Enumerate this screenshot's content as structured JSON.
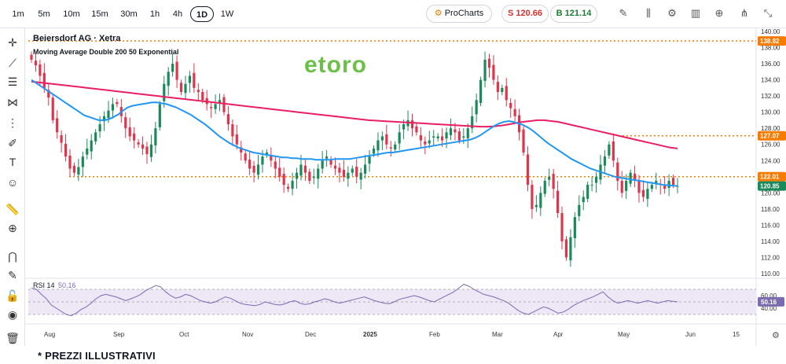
{
  "toolbar": {
    "timeframes": [
      "1m",
      "5m",
      "10m",
      "15m",
      "30m",
      "1h",
      "4h",
      "1D",
      "1W"
    ],
    "active_timeframe": "1D",
    "prochart_label": "ProCharts",
    "sell_label": "S 120.66",
    "buy_label": "B 121.14"
  },
  "logo_text": "etoro",
  "footer_note": "* PREZZI ILLUSTRATIVI",
  "colors": {
    "up": "#1b8a5a",
    "down": "#e0344c",
    "ma_fast": "#2196f3",
    "ma_slow": "#e91e63",
    "level_line": "#f57c00",
    "rsi_line": "#7b6bb0",
    "rsi_band": "#ede7f6",
    "logo": "#6cc04a"
  },
  "chart_data": {
    "type": "candlestick",
    "title": "Beiersdorf AG · Xetra",
    "indicator_label": "Moving Average Double 200 50 Exponential",
    "ylim": [
      110,
      140
    ],
    "y_ticks": [
      110,
      112,
      114,
      116,
      118,
      120,
      122,
      124,
      126,
      128,
      130,
      132,
      134,
      136,
      138,
      140
    ],
    "x_ticks": [
      "Aug",
      "Sep",
      "Oct",
      "Nov",
      "Dec",
      "2025",
      "Feb",
      "Mar",
      "Apr",
      "May",
      "Jun",
      "15"
    ],
    "price_levels": [
      {
        "value": 138.82,
        "label": "138.82",
        "color": "#f57c00"
      },
      {
        "value": 127.07,
        "label": "127.07",
        "color": "#f57c00"
      },
      {
        "value": 122.01,
        "label": "122.01",
        "color": "#f57c00"
      },
      {
        "value": 120.85,
        "label": "120.85",
        "color": "#1b8a5a"
      }
    ],
    "ohlc_closes": [
      136.5,
      135.8,
      134.5,
      133.0,
      131.8,
      129.0,
      127.5,
      126.2,
      124.5,
      123.0,
      122.5,
      123.2,
      124.5,
      125.5,
      126.5,
      127.5,
      128.5,
      129.5,
      130.2,
      131.0,
      131.0,
      129.5,
      128.0,
      127.0,
      126.5,
      126.0,
      125.5,
      124.8,
      126.0,
      128.0,
      131.0,
      133.5,
      135.0,
      136.0,
      134.0,
      132.5,
      133.5,
      134.5,
      133.0,
      132.5,
      131.5,
      131.0,
      130.5,
      131.0,
      131.5,
      130.0,
      128.5,
      127.0,
      126.0,
      125.0,
      124.0,
      123.0,
      122.5,
      123.5,
      124.5,
      125.0,
      124.0,
      123.0,
      122.0,
      121.0,
      120.5,
      121.5,
      122.5,
      123.5,
      122.5,
      121.5,
      122.0,
      123.0,
      124.0,
      124.5,
      123.5,
      123.0,
      122.5,
      122.0,
      122.5,
      123.0,
      122.0,
      122.5,
      123.5,
      124.5,
      125.5,
      126.5,
      127.0,
      126.0,
      125.5,
      126.0,
      127.5,
      128.5,
      129.0,
      128.0,
      127.5,
      126.5,
      126.0,
      126.5,
      127.0,
      127.0,
      126.5,
      127.5,
      128.0,
      127.5,
      126.5,
      127.0,
      128.0,
      129.5,
      131.5,
      134.0,
      136.5,
      135.5,
      134.0,
      132.5,
      133.0,
      131.5,
      130.5,
      129.5,
      127.5,
      125.0,
      121.0,
      118.0,
      118.5,
      120.0,
      121.5,
      122.0,
      120.5,
      117.5,
      114.0,
      112.0,
      114.5,
      117.0,
      118.5,
      119.5,
      121.0,
      121.0,
      122.0,
      123.5,
      124.5,
      126.0,
      124.0,
      121.5,
      120.0,
      121.5,
      122.5,
      121.5,
      120.0,
      119.5,
      120.5,
      121.0,
      121.5,
      121.0,
      120.5,
      121.5,
      121.0,
      120.85
    ],
    "ema50": [
      134.0,
      133.6,
      133.2,
      132.8,
      132.4,
      132.0,
      131.6,
      131.2,
      130.8,
      130.4,
      130.0,
      129.6,
      129.4,
      129.2,
      129.0,
      129.0,
      129.1,
      129.4,
      129.7,
      130.2,
      130.6,
      130.8,
      130.9,
      131.0,
      131.1,
      131.2,
      131.2,
      131.1,
      131.0,
      130.8,
      130.6,
      130.3,
      130.0,
      129.7,
      129.3,
      128.9,
      128.5,
      128.0,
      127.5,
      127.0,
      126.6,
      126.2,
      125.9,
      125.6,
      125.4,
      125.2,
      125.0,
      124.9,
      124.8,
      124.7,
      124.6,
      124.5,
      124.4,
      124.4,
      124.3,
      124.3,
      124.2,
      124.2,
      124.2,
      124.1,
      124.1,
      124.1,
      124.1,
      124.2,
      124.2,
      124.2,
      124.2,
      124.3,
      124.4,
      124.5,
      124.6,
      124.7,
      124.8,
      124.9,
      125.0,
      125.0,
      125.1,
      125.2,
      125.3,
      125.4,
      125.5,
      125.6,
      125.7,
      125.8,
      125.9,
      126.0,
      126.1,
      126.2,
      126.3,
      126.4,
      126.5,
      126.6,
      126.8,
      127.1,
      127.5,
      127.9,
      128.3,
      128.6,
      128.8,
      128.9,
      128.8,
      128.6,
      128.4,
      128.1,
      127.7,
      127.2,
      126.7,
      126.2,
      125.8,
      125.4,
      125.0,
      124.6,
      124.2,
      123.9,
      123.6,
      123.3,
      123.0,
      122.8,
      122.6,
      122.4,
      122.2,
      122.0,
      121.9,
      121.8,
      121.7,
      121.6,
      121.5,
      121.4,
      121.3,
      121.2,
      121.1,
      121.0,
      120.95,
      120.9,
      120.85
    ],
    "ema200": [
      133.8,
      133.7,
      133.6,
      133.5,
      133.4,
      133.3,
      133.2,
      133.1,
      133.0,
      132.9,
      132.8,
      132.7,
      132.6,
      132.5,
      132.4,
      132.3,
      132.2,
      132.1,
      132.0,
      131.9,
      131.8,
      131.7,
      131.6,
      131.5,
      131.4,
      131.3,
      131.2,
      131.1,
      131.0,
      130.9,
      130.8,
      130.7,
      130.6,
      130.5,
      130.4,
      130.3,
      130.2,
      130.1,
      130.0,
      129.9,
      129.8,
      129.7,
      129.6,
      129.5,
      129.4,
      129.3,
      129.2,
      129.1,
      129.0,
      128.95,
      128.9,
      128.85,
      128.8,
      128.75,
      128.7,
      128.65,
      128.6,
      128.55,
      128.5,
      128.45,
      128.4,
      128.35,
      128.3,
      128.25,
      128.2,
      128.2,
      128.25,
      128.35,
      128.5,
      128.65,
      128.8,
      128.9,
      129.0,
      129.0,
      128.9,
      128.8,
      128.6,
      128.4,
      128.2,
      128.0,
      127.8,
      127.6,
      127.4,
      127.2,
      127.0,
      126.8,
      126.6,
      126.4,
      126.2,
      126.0,
      125.8,
      125.6,
      125.5
    ],
    "rsi": {
      "label": "RSI 14",
      "value": "50.16",
      "ylim": [
        20,
        80
      ],
      "ticks": [
        60,
        40
      ],
      "value_tag": "50.16",
      "series": [
        72,
        70,
        62,
        55,
        45,
        40,
        35,
        30,
        28,
        32,
        38,
        42,
        48,
        55,
        60,
        62,
        60,
        58,
        55,
        52,
        55,
        58,
        62,
        68,
        72,
        76,
        74,
        66,
        60,
        56,
        58,
        62,
        60,
        56,
        52,
        50,
        48,
        50,
        54,
        58,
        56,
        52,
        48,
        46,
        45,
        44,
        46,
        50,
        48,
        46,
        45,
        47,
        50,
        52,
        48,
        46,
        47,
        50,
        52,
        55,
        53,
        50,
        48,
        50,
        52,
        54,
        56,
        58,
        55,
        52,
        50,
        48,
        47,
        50,
        54,
        56,
        58,
        60,
        58,
        55,
        52,
        50,
        54,
        58,
        62,
        66,
        72,
        78,
        75,
        70,
        66,
        62,
        60,
        58,
        55,
        52,
        48,
        42,
        36,
        32,
        30,
        34,
        38,
        42,
        40,
        36,
        32,
        34,
        38,
        44,
        48,
        52,
        55,
        58,
        62,
        66,
        58,
        52,
        48,
        50,
        52,
        50,
        48,
        50,
        52,
        50,
        48,
        50,
        52,
        51,
        50.16
      ]
    }
  }
}
